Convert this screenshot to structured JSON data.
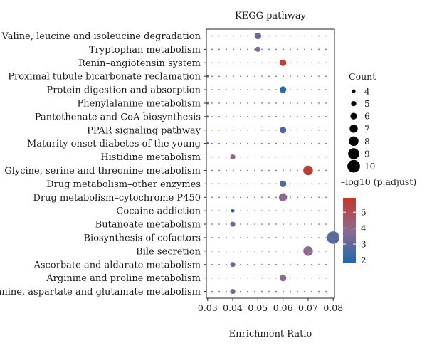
{
  "chart_data": {
    "type": "scatter",
    "title": "KEGG pathway",
    "xlabel": "Enrichment Ratio",
    "ylabel": "",
    "xlim": [
      0.0295,
      0.0805
    ],
    "x_ticks": [
      "0.03",
      "0.04",
      "0.05",
      "0.06",
      "0.07",
      "0.08"
    ],
    "x_tick_values": [
      0.03,
      0.04,
      0.05,
      0.06,
      0.07,
      0.08
    ],
    "categories": [
      "Valine, leucine and isoleucine degradation",
      "Tryptophan metabolism",
      "Renin–angiotensin system",
      "Proximal tubule bicarbonate reclamation",
      "Protein digestion and absorption",
      "Phenylalanine metabolism",
      "Pantothenate and CoA biosynthesis",
      "PPAR signaling pathway",
      "Maturity onset diabetes of the young",
      "Histidine metabolism",
      "Glycine, serine and threonine metabolism",
      "Drug metabolism–other enzymes",
      "Drug metabolism–cytochrome P450",
      "Cocaine addiction",
      "Butanoate metabolism",
      "Biosynthesis of cofactors",
      "Bile secretion",
      "Ascorbate and aldarate metabolism",
      "Arginine and proline metabolism",
      "Alanine, aspartate and glutamate metabolism"
    ],
    "points": [
      {
        "category": "Valine, leucine and isoleucine degradation",
        "x": 0.05,
        "count": 6,
        "neglog10_padj": 3.2
      },
      {
        "category": "Tryptophan metabolism",
        "x": 0.05,
        "count": 5,
        "neglog10_padj": 3.6
      },
      {
        "category": "Renin–angiotensin system",
        "x": 0.06,
        "count": 6,
        "neglog10_padj": 5.6
      },
      {
        "category": "Proximal tubule bicarbonate reclamation",
        "x": 0.03,
        "count": 3,
        "neglog10_padj": 2.8
      },
      {
        "category": "Protein digestion and absorption",
        "x": 0.06,
        "count": 6,
        "neglog10_padj": 2.0
      },
      {
        "category": "Phenylalanine metabolism",
        "x": 0.03,
        "count": 3,
        "neglog10_padj": 3.0
      },
      {
        "category": "Pantothenate and CoA biosynthesis",
        "x": 0.03,
        "count": 3,
        "neglog10_padj": 2.8
      },
      {
        "category": "PPAR signaling pathway",
        "x": 0.06,
        "count": 6,
        "neglog10_padj": 2.7
      },
      {
        "category": "Maturity onset diabetes of the young",
        "x": 0.03,
        "count": 3,
        "neglog10_padj": 2.0
      },
      {
        "category": "Histidine metabolism",
        "x": 0.04,
        "count": 5,
        "neglog10_padj": 4.0
      },
      {
        "category": "Glycine, serine and threonine metabolism",
        "x": 0.07,
        "count": 8,
        "neglog10_padj": 5.7
      },
      {
        "category": "Drug metabolism–other enzymes",
        "x": 0.06,
        "count": 6,
        "neglog10_padj": 2.8
      },
      {
        "category": "Drug metabolism–cytochrome P450",
        "x": 0.06,
        "count": 7,
        "neglog10_padj": 3.8
      },
      {
        "category": "Cocaine addiction",
        "x": 0.04,
        "count": 4,
        "neglog10_padj": 1.9
      },
      {
        "category": "Butanoate metabolism",
        "x": 0.04,
        "count": 5,
        "neglog10_padj": 3.2
      },
      {
        "category": "Biosynthesis of cofactors",
        "x": 0.08,
        "count": 10,
        "neglog10_padj": 2.9
      },
      {
        "category": "Bile secretion",
        "x": 0.07,
        "count": 8,
        "neglog10_padj": 3.9
      },
      {
        "category": "Ascorbate and aldarate metabolism",
        "x": 0.04,
        "count": 5,
        "neglog10_padj": 3.2
      },
      {
        "category": "Arginine and proline metabolism",
        "x": 0.06,
        "count": 6,
        "neglog10_padj": 3.8
      },
      {
        "category": "Alanine, aspartate and glutamate metabolism",
        "x": 0.04,
        "count": 5,
        "neglog10_padj": 3.2
      }
    ],
    "size_legend": {
      "title": "Count",
      "values": [
        4,
        5,
        6,
        7,
        8,
        9,
        10
      ]
    },
    "color_legend": {
      "title": "–log10 (p.adjust)",
      "range": [
        1.8,
        5.9
      ],
      "ticks": [
        2,
        3,
        4,
        5
      ],
      "low_color": "#2166ac",
      "mid_color": "#8e6b8f",
      "high_color": "#c0392b"
    },
    "grid": "dotted",
    "legend_placement": "right"
  }
}
